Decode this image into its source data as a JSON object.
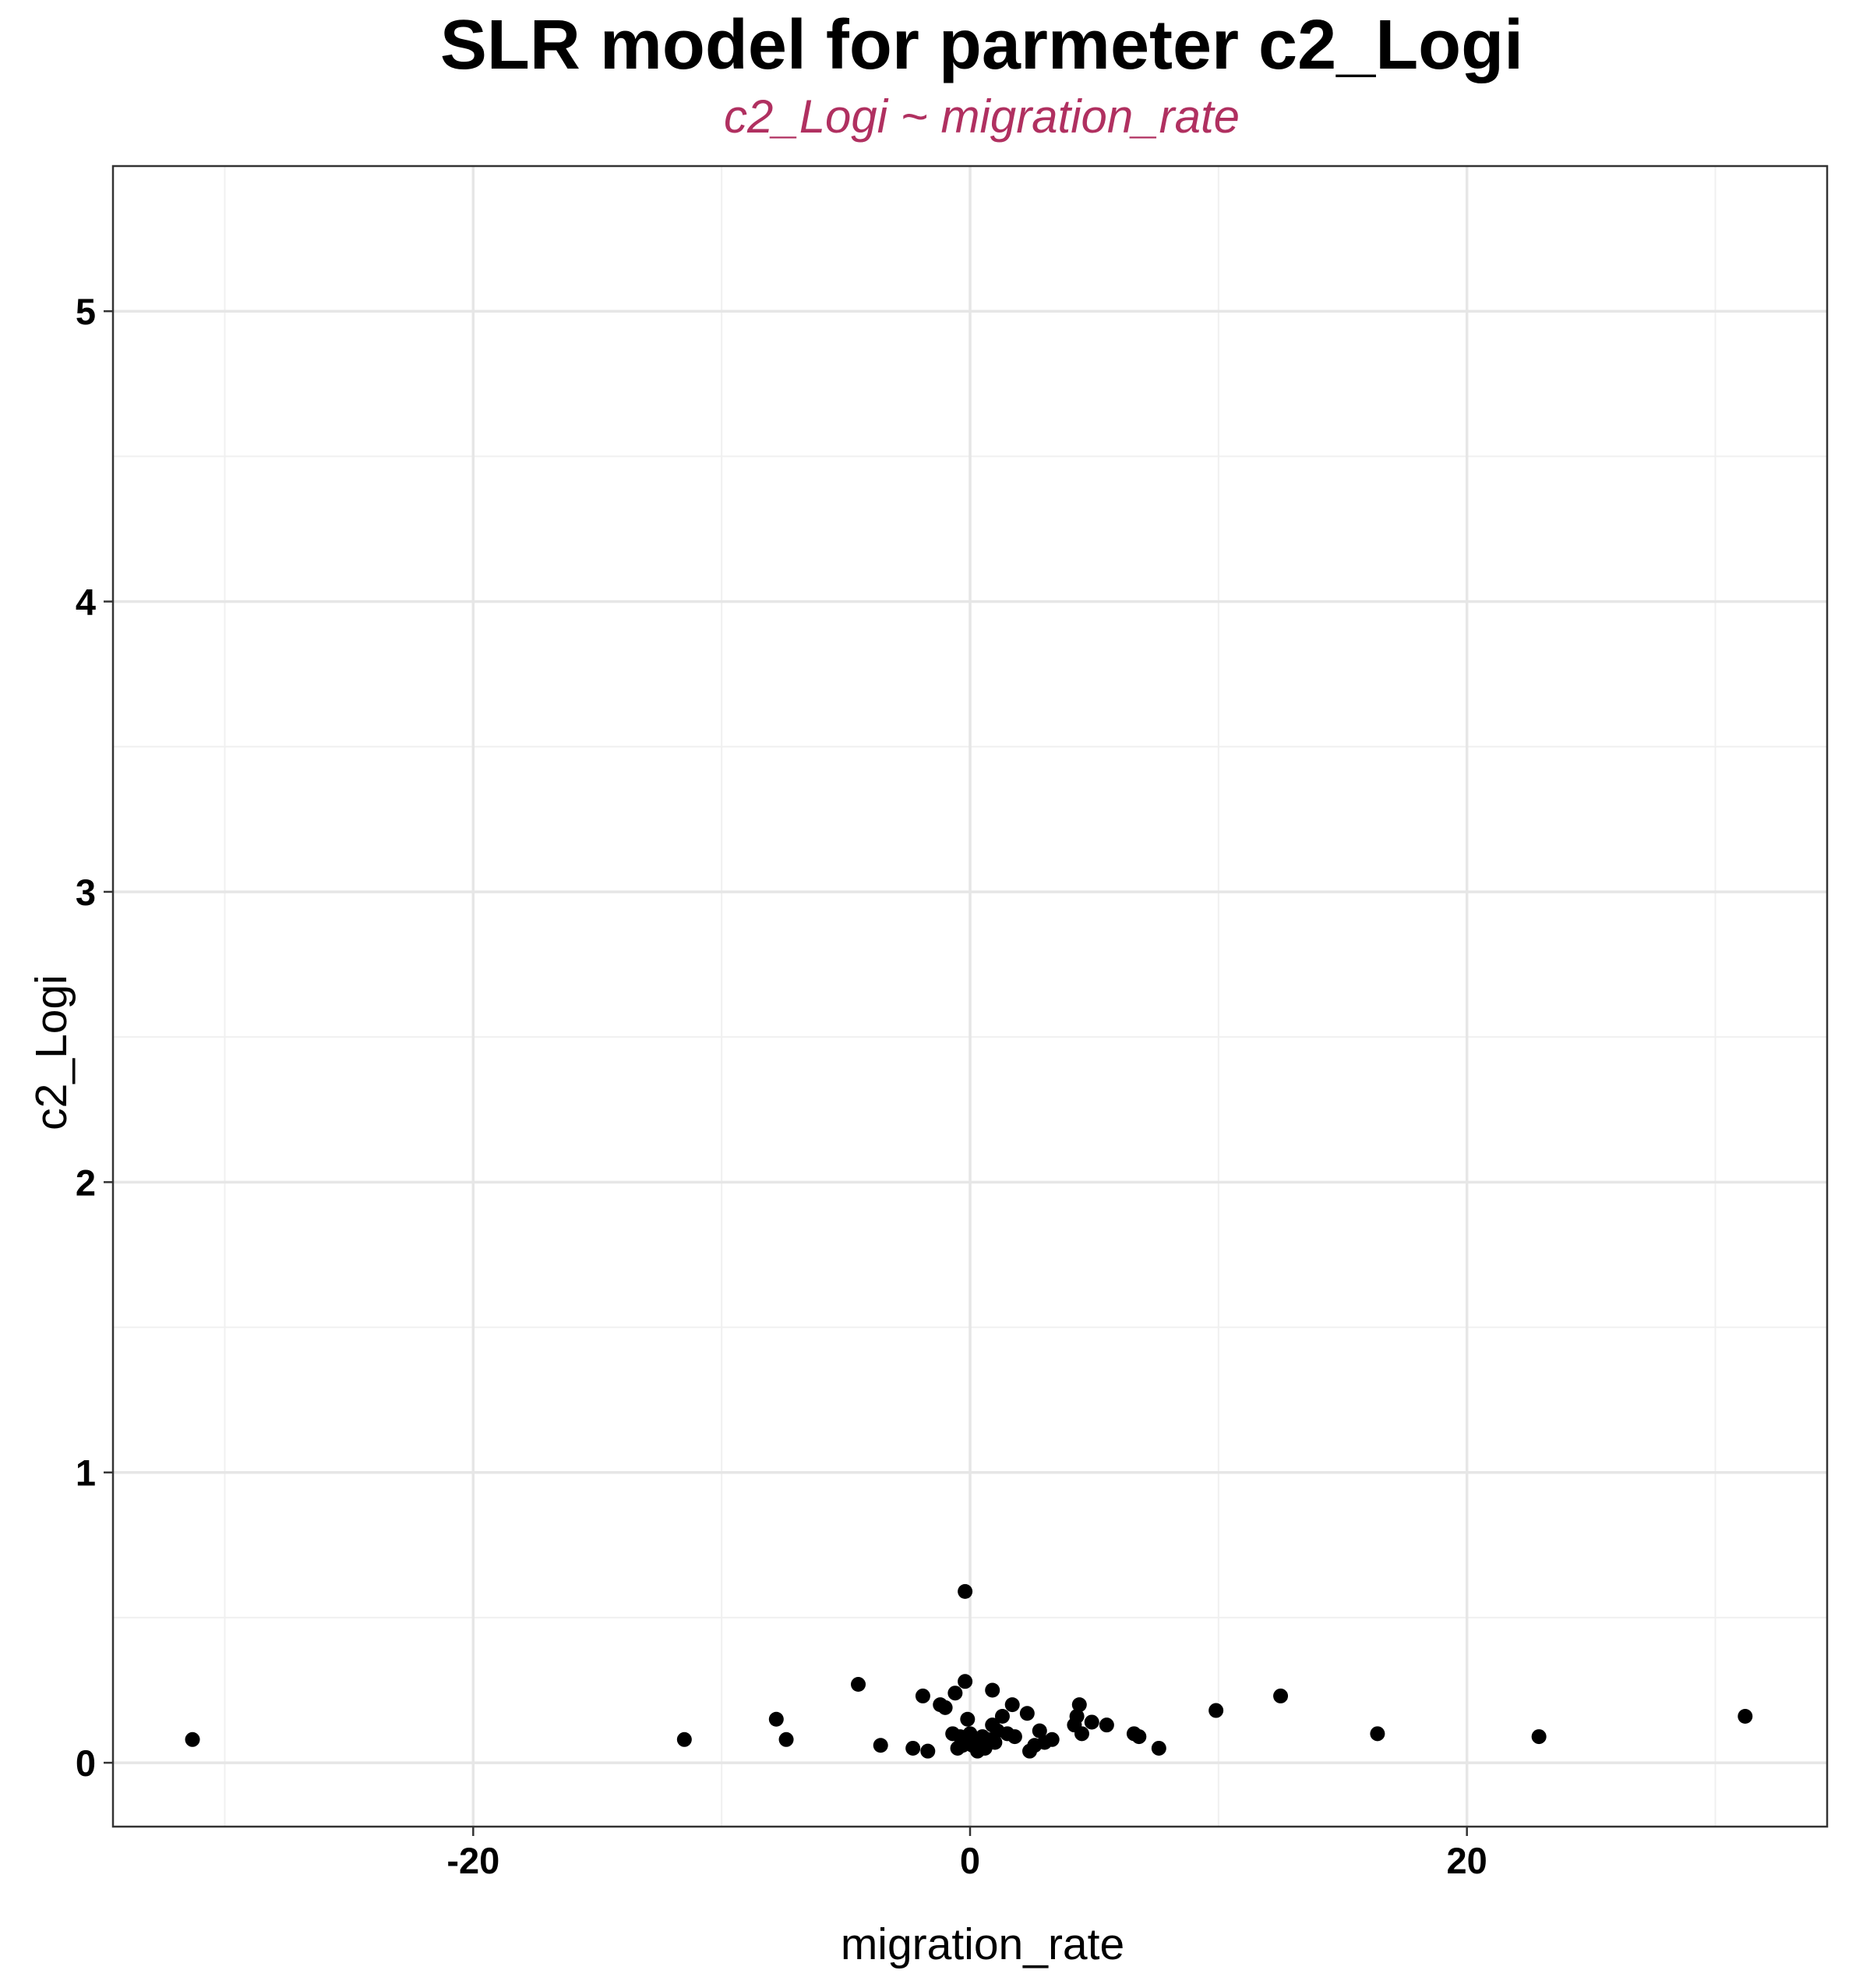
{
  "chart_data": {
    "type": "scatter",
    "title": "SLR model for parmeter c2_Logi",
    "subtitle": "c2_Logi ~ migration_rate",
    "xlabel": "migration_rate",
    "ylabel": "c2_Logi",
    "xlim": [
      -34.5,
      34.5
    ],
    "ylim": [
      -0.22,
      5.5
    ],
    "x_ticks": [
      -20,
      0,
      20
    ],
    "x_tick_labels": [
      "-20",
      "0",
      "20"
    ],
    "y_ticks": [
      0,
      1,
      2,
      3,
      4,
      5
    ],
    "y_tick_labels": [
      "0",
      "1",
      "2",
      "3",
      "4",
      "5"
    ],
    "grid": true,
    "subtitle_color": "#b03060",
    "point_color": "#000000",
    "points": [
      {
        "x": -31.3,
        "y": 0.08
      },
      {
        "x": -11.5,
        "y": 0.08
      },
      {
        "x": -7.8,
        "y": 0.15
      },
      {
        "x": -7.4,
        "y": 0.08
      },
      {
        "x": -4.5,
        "y": 0.27
      },
      {
        "x": -3.6,
        "y": 0.06
      },
      {
        "x": -2.3,
        "y": 0.05
      },
      {
        "x": -1.9,
        "y": 0.23
      },
      {
        "x": -1.7,
        "y": 0.04
      },
      {
        "x": -1.2,
        "y": 0.2
      },
      {
        "x": -1.0,
        "y": 0.19
      },
      {
        "x": -0.7,
        "y": 0.1
      },
      {
        "x": -0.6,
        "y": 0.24
      },
      {
        "x": -0.5,
        "y": 0.05
      },
      {
        "x": -0.4,
        "y": 0.09
      },
      {
        "x": -0.3,
        "y": 0.06
      },
      {
        "x": -0.2,
        "y": 0.28
      },
      {
        "x": -0.2,
        "y": 0.59
      },
      {
        "x": -0.1,
        "y": 0.15
      },
      {
        "x": 0.0,
        "y": 0.1
      },
      {
        "x": 0.1,
        "y": 0.06
      },
      {
        "x": 0.3,
        "y": 0.04
      },
      {
        "x": 0.4,
        "y": 0.07
      },
      {
        "x": 0.5,
        "y": 0.09
      },
      {
        "x": 0.6,
        "y": 0.05
      },
      {
        "x": 0.7,
        "y": 0.08
      },
      {
        "x": 0.9,
        "y": 0.25
      },
      {
        "x": 0.9,
        "y": 0.13
      },
      {
        "x": 1.0,
        "y": 0.07
      },
      {
        "x": 1.1,
        "y": 0.11
      },
      {
        "x": 1.3,
        "y": 0.16
      },
      {
        "x": 1.5,
        "y": 0.1
      },
      {
        "x": 1.7,
        "y": 0.2
      },
      {
        "x": 1.8,
        "y": 0.09
      },
      {
        "x": 2.3,
        "y": 0.17
      },
      {
        "x": 2.4,
        "y": 0.04
      },
      {
        "x": 2.6,
        "y": 0.06
      },
      {
        "x": 2.8,
        "y": 0.11
      },
      {
        "x": 3.0,
        "y": 0.07
      },
      {
        "x": 3.3,
        "y": 0.08
      },
      {
        "x": 4.2,
        "y": 0.13
      },
      {
        "x": 4.3,
        "y": 0.16
      },
      {
        "x": 4.4,
        "y": 0.2
      },
      {
        "x": 4.5,
        "y": 0.1
      },
      {
        "x": 4.9,
        "y": 0.14
      },
      {
        "x": 5.5,
        "y": 0.13
      },
      {
        "x": 6.6,
        "y": 0.1
      },
      {
        "x": 6.8,
        "y": 0.09
      },
      {
        "x": 7.6,
        "y": 0.05
      },
      {
        "x": 9.9,
        "y": 0.18
      },
      {
        "x": 12.5,
        "y": 0.23
      },
      {
        "x": 16.4,
        "y": 0.1
      },
      {
        "x": 22.9,
        "y": 0.09
      },
      {
        "x": 31.2,
        "y": 0.16
      }
    ]
  }
}
